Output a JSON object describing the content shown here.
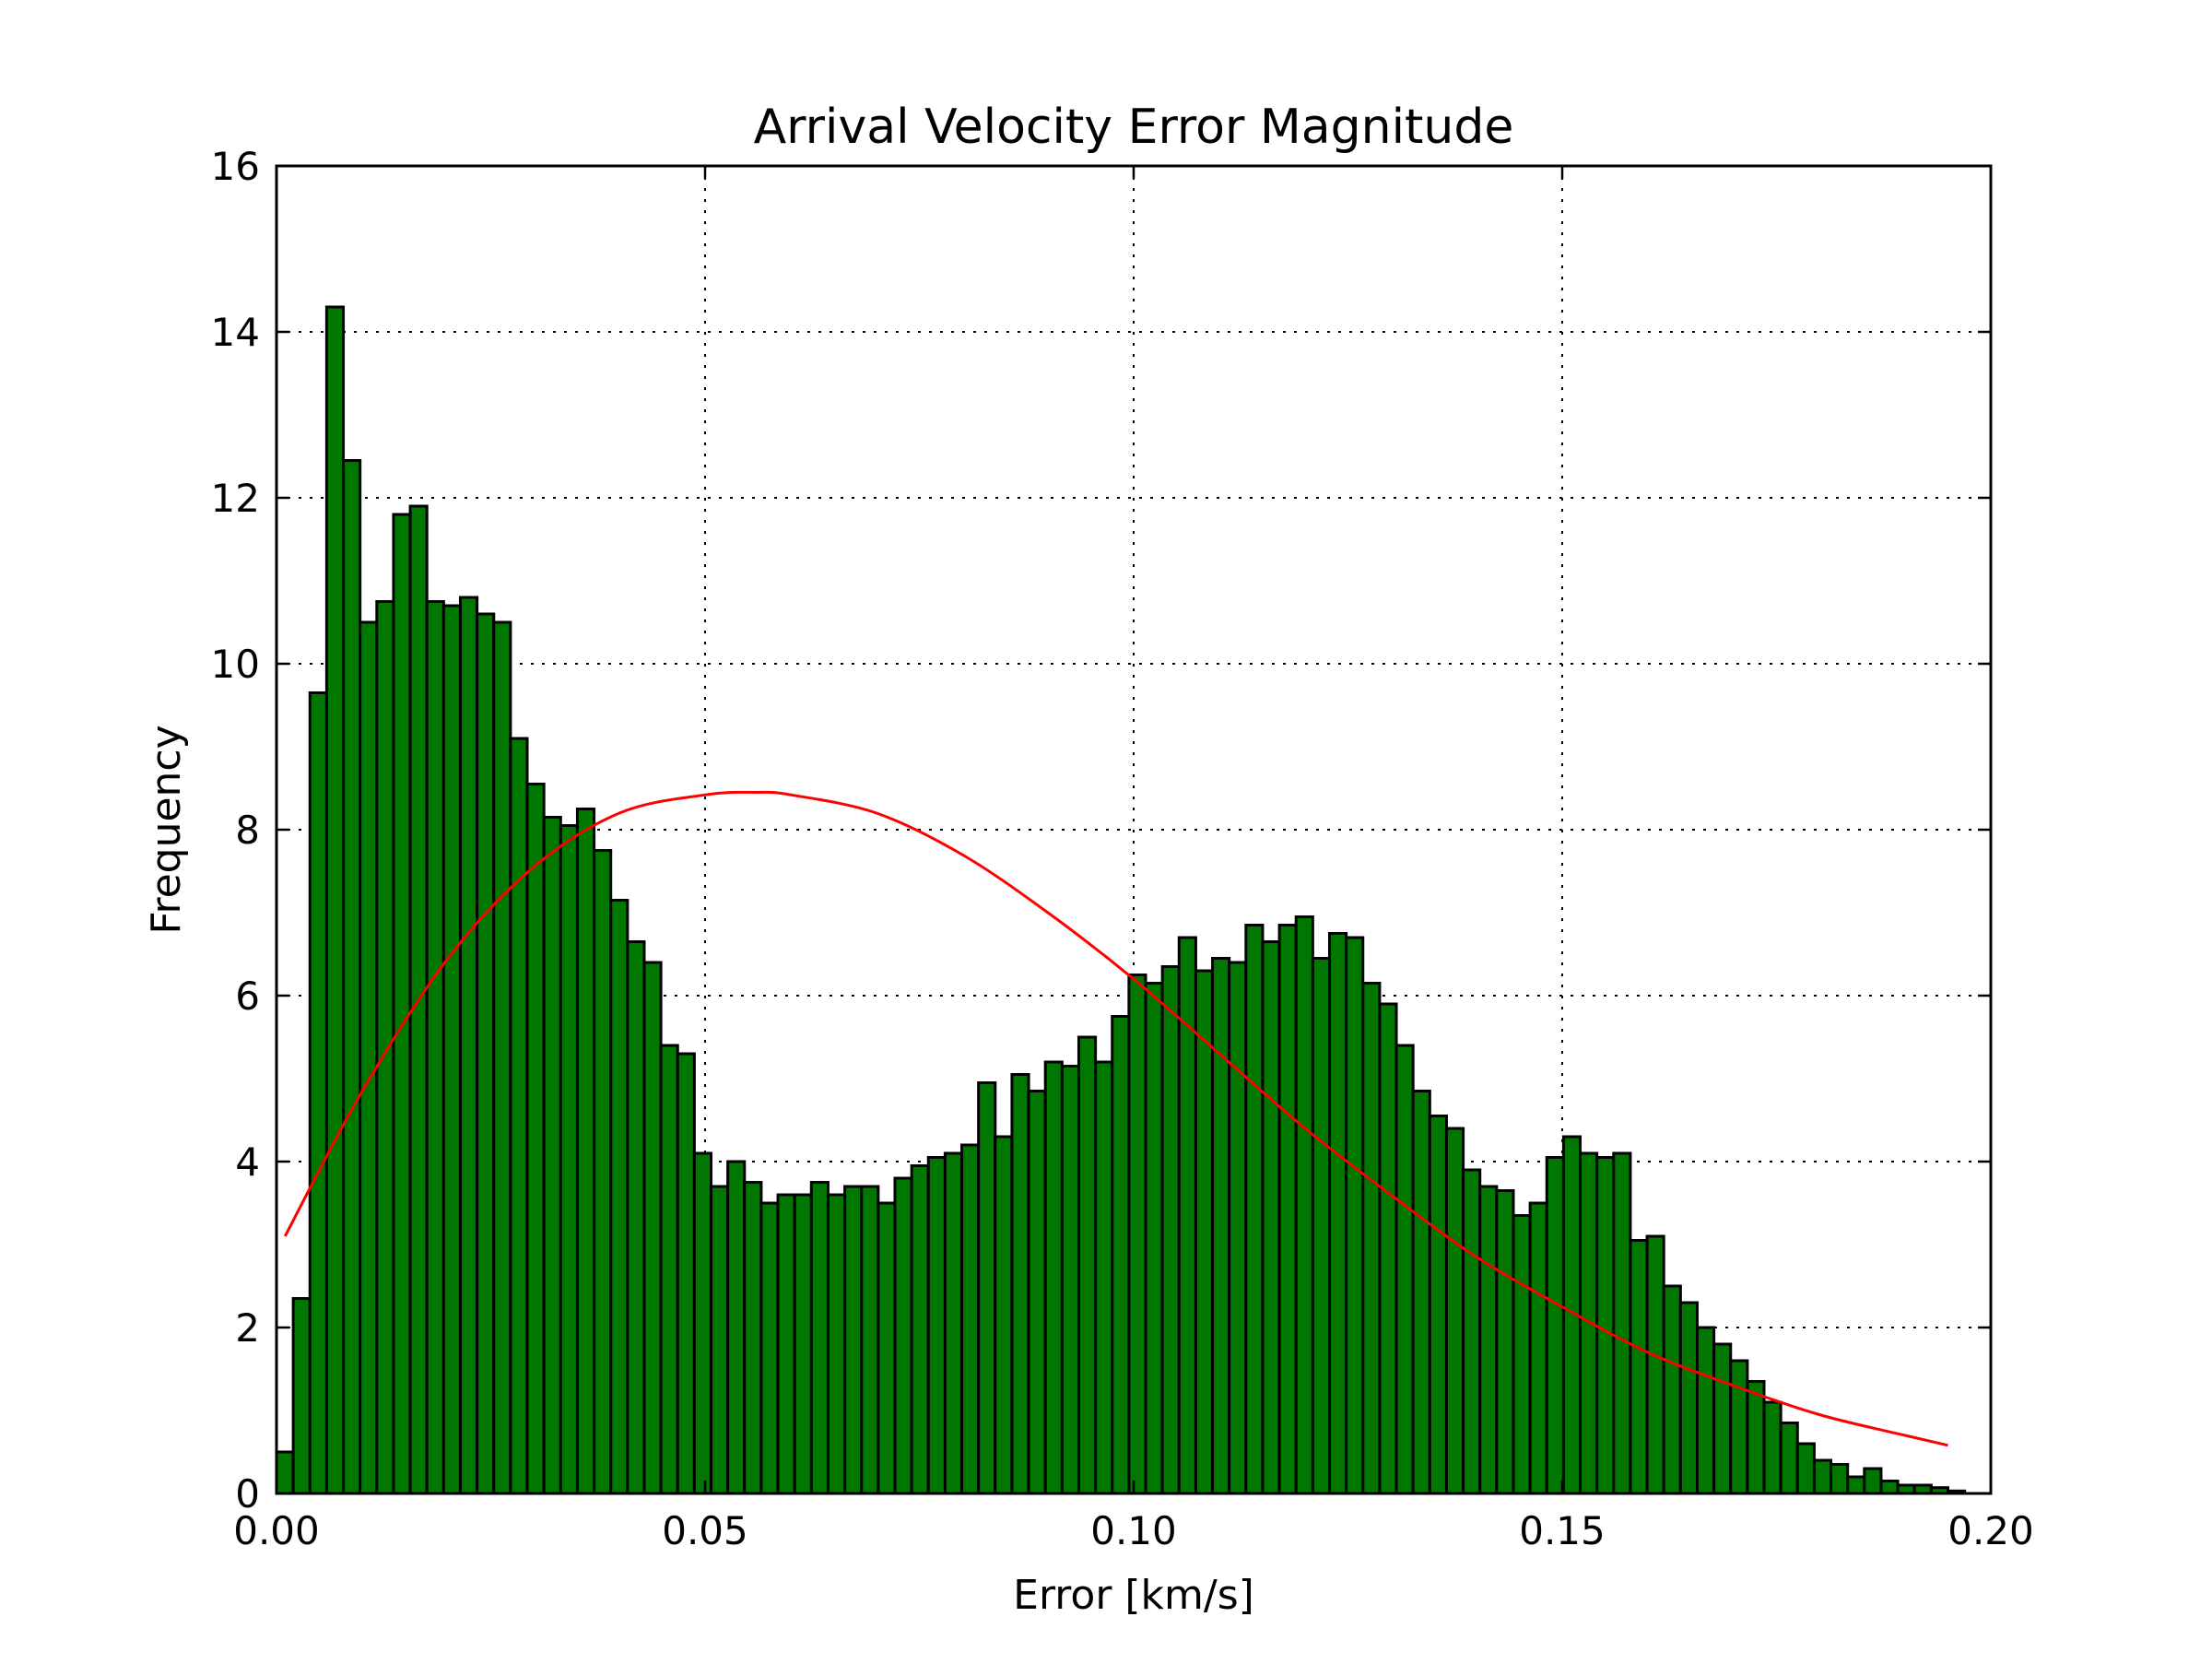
{
  "chart_data": {
    "type": "bar",
    "title": "Arrival Velocity Error Magnitude",
    "xlabel": "Error [km/s]",
    "ylabel": "Frequency",
    "xlim": [
      0.0,
      0.2
    ],
    "ylim": [
      0,
      16
    ],
    "x_ticks": [
      0.0,
      0.05,
      0.1,
      0.15,
      0.2
    ],
    "x_tick_labels": [
      "0.00",
      "0.05",
      "0.10",
      "0.15",
      "0.20"
    ],
    "y_ticks": [
      0,
      2,
      4,
      6,
      8,
      10,
      12,
      14,
      16
    ],
    "y_tick_labels": [
      "0",
      "2",
      "4",
      "6",
      "8",
      "10",
      "12",
      "14",
      "16"
    ],
    "grid": true,
    "bar_color": "#007700",
    "curve_color": "#ff0000",
    "histogram": {
      "bin_start": 0.0,
      "bin_width": 0.00195,
      "values": [
        0.5,
        2.35,
        9.65,
        14.3,
        12.45,
        10.5,
        10.75,
        11.8,
        11.9,
        10.75,
        10.7,
        10.8,
        10.6,
        10.5,
        9.1,
        8.55,
        8.15,
        8.05,
        8.25,
        7.75,
        7.15,
        6.65,
        6.4,
        5.4,
        5.3,
        4.1,
        3.7,
        4.0,
        3.75,
        3.5,
        3.6,
        3.6,
        3.75,
        3.6,
        3.7,
        3.7,
        3.5,
        3.8,
        3.95,
        4.05,
        4.1,
        4.2,
        4.95,
        4.3,
        5.05,
        4.85,
        5.2,
        5.15,
        5.5,
        5.2,
        5.75,
        6.25,
        6.15,
        6.35,
        6.7,
        6.3,
        6.45,
        6.4,
        6.85,
        6.65,
        6.85,
        6.95,
        6.45,
        6.75,
        6.7,
        6.15,
        5.9,
        5.4,
        4.85,
        4.55,
        4.4,
        3.9,
        3.7,
        3.65,
        3.35,
        3.5,
        4.05,
        4.3,
        4.1,
        4.05,
        4.1,
        3.05,
        3.1,
        2.5,
        2.3,
        2.0,
        1.8,
        1.6,
        1.35,
        1.1,
        0.85,
        0.6,
        0.4,
        0.35,
        0.2,
        0.3,
        0.15,
        0.1,
        0.1,
        0.07,
        0.03
      ]
    },
    "fit_curve": {
      "type": "normal-pdf",
      "x": [
        0.001,
        0.01,
        0.02,
        0.03,
        0.04,
        0.05,
        0.056,
        0.06,
        0.07,
        0.08,
        0.09,
        0.1,
        0.11,
        0.12,
        0.13,
        0.14,
        0.15,
        0.16,
        0.17,
        0.18,
        0.19,
        0.195
      ],
      "y": [
        3.1,
        4.85,
        6.45,
        7.55,
        8.2,
        8.42,
        8.45,
        8.42,
        8.2,
        7.7,
        7.0,
        6.2,
        5.3,
        4.4,
        3.6,
        2.85,
        2.25,
        1.7,
        1.3,
        0.95,
        0.7,
        0.58
      ]
    }
  }
}
